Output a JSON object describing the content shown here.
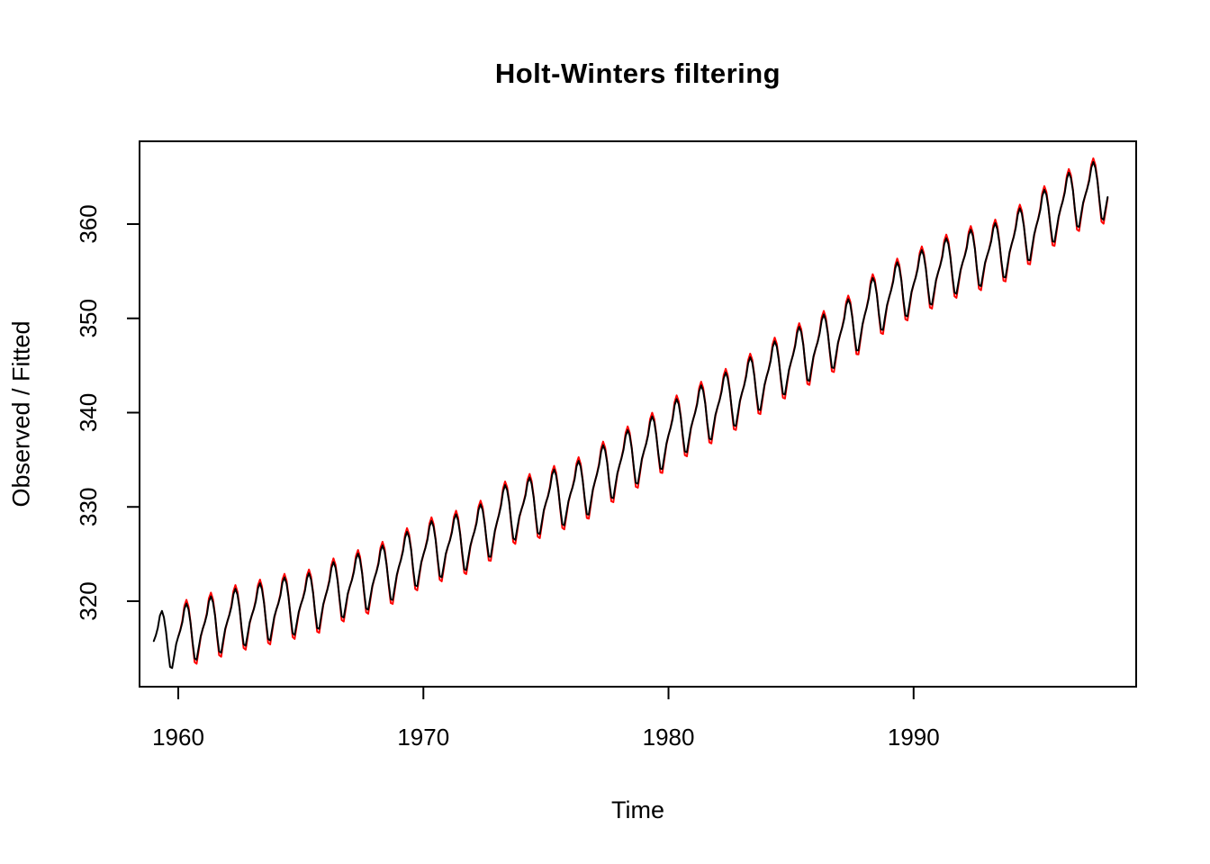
{
  "figure": {
    "background": "#FFFFFF",
    "foreground": "#000000"
  },
  "chart_data": {
    "type": "line",
    "title": "Holt-Winters filtering",
    "xlabel": "Time",
    "ylabel": "Observed / Fitted",
    "x_ticks": [
      1960,
      1970,
      1980,
      1990
    ],
    "y_ticks": [
      320,
      330,
      340,
      350,
      360
    ],
    "xlim": [
      1958.42,
      1999.08
    ],
    "ylim": [
      310.93,
      368.78
    ],
    "grid": false,
    "legend": "none",
    "frame_box": true,
    "frequency": 12,
    "x_start": 1959.0,
    "x_end": 1997.9167,
    "series": [
      {
        "name": "fitted",
        "color": "#FF0000",
        "start": 1960.0,
        "seasonal_scale": 1.13
      },
      {
        "name": "observed",
        "color": "#000000",
        "start": 1959.0,
        "seasonal_scale": 1.0
      }
    ],
    "annual_means_start_year": 1959,
    "annual_means": [
      315.97,
      316.91,
      317.64,
      318.45,
      318.99,
      319.62,
      320.04,
      321.37,
      322.18,
      323.05,
      324.62,
      325.68,
      326.32,
      327.46,
      329.68,
      330.19,
      331.12,
      332.03,
      333.84,
      335.41,
      336.84,
      338.76,
      340.12,
      341.48,
      343.15,
      344.85,
      346.35,
      347.61,
      349.31,
      351.69,
      353.2,
      354.45,
      355.7,
      356.54,
      357.21,
      358.96,
      360.97,
      362.74,
      363.76
    ],
    "seasonal_pattern": [
      -0.2,
      0.4,
      1.2,
      2.5,
      3.0,
      2.3,
      0.8,
      -1.3,
      -3.1,
      -3.3,
      -2.1,
      -0.9
    ],
    "note": "Monthly CO2-style series, Jan 1959 - Dec 1997 (values ~315 to ~367). value(t) = linearly interpolated annual mean + seasonal_pattern[month] * seasonal_scale. Observed drawn in black; Holt-Winters fitted drawn in red underneath (starts Jan 1960), overlapping the observed line almost everywhere."
  }
}
